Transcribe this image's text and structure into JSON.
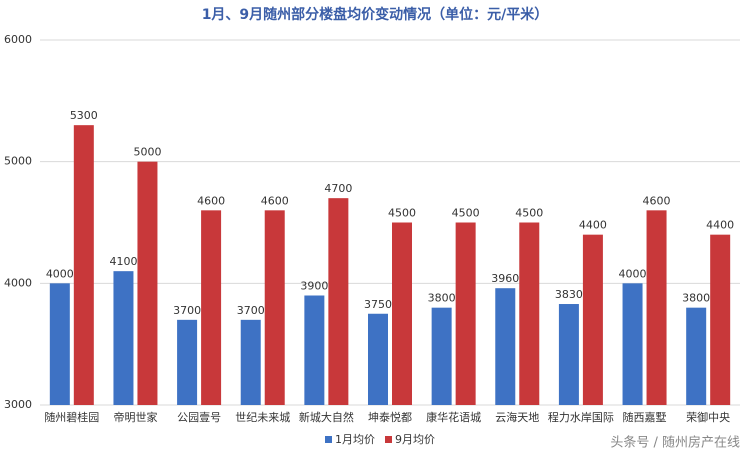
{
  "chart_data": {
    "type": "bar",
    "title": "1月、9月随州部分楼盘均价变动情况（单位：元/平米）",
    "categories": [
      "随州碧桂园",
      "帝明世家",
      "公园壹号",
      "世纪未来城",
      "新城大自然",
      "坤泰悦都",
      "康华花语城",
      "云海天地",
      "程力水岸国际",
      "随西嘉墅",
      "荣御中央"
    ],
    "series": [
      {
        "name": "1月均价",
        "color": "#3e72c4",
        "values": [
          4000,
          4100,
          3700,
          3700,
          3900,
          3750,
          3800,
          3960,
          3830,
          4000,
          3800
        ]
      },
      {
        "name": "9月均价",
        "color": "#c8383a",
        "values": [
          5300,
          5000,
          4600,
          4600,
          4700,
          4500,
          4500,
          4500,
          4400,
          4600,
          4400
        ]
      }
    ],
    "ylim": [
      3000,
      6000
    ],
    "yticks": [
      3000,
      4000,
      5000,
      6000
    ],
    "grid": true,
    "watermark": "头条号 / 随州房产在线"
  }
}
